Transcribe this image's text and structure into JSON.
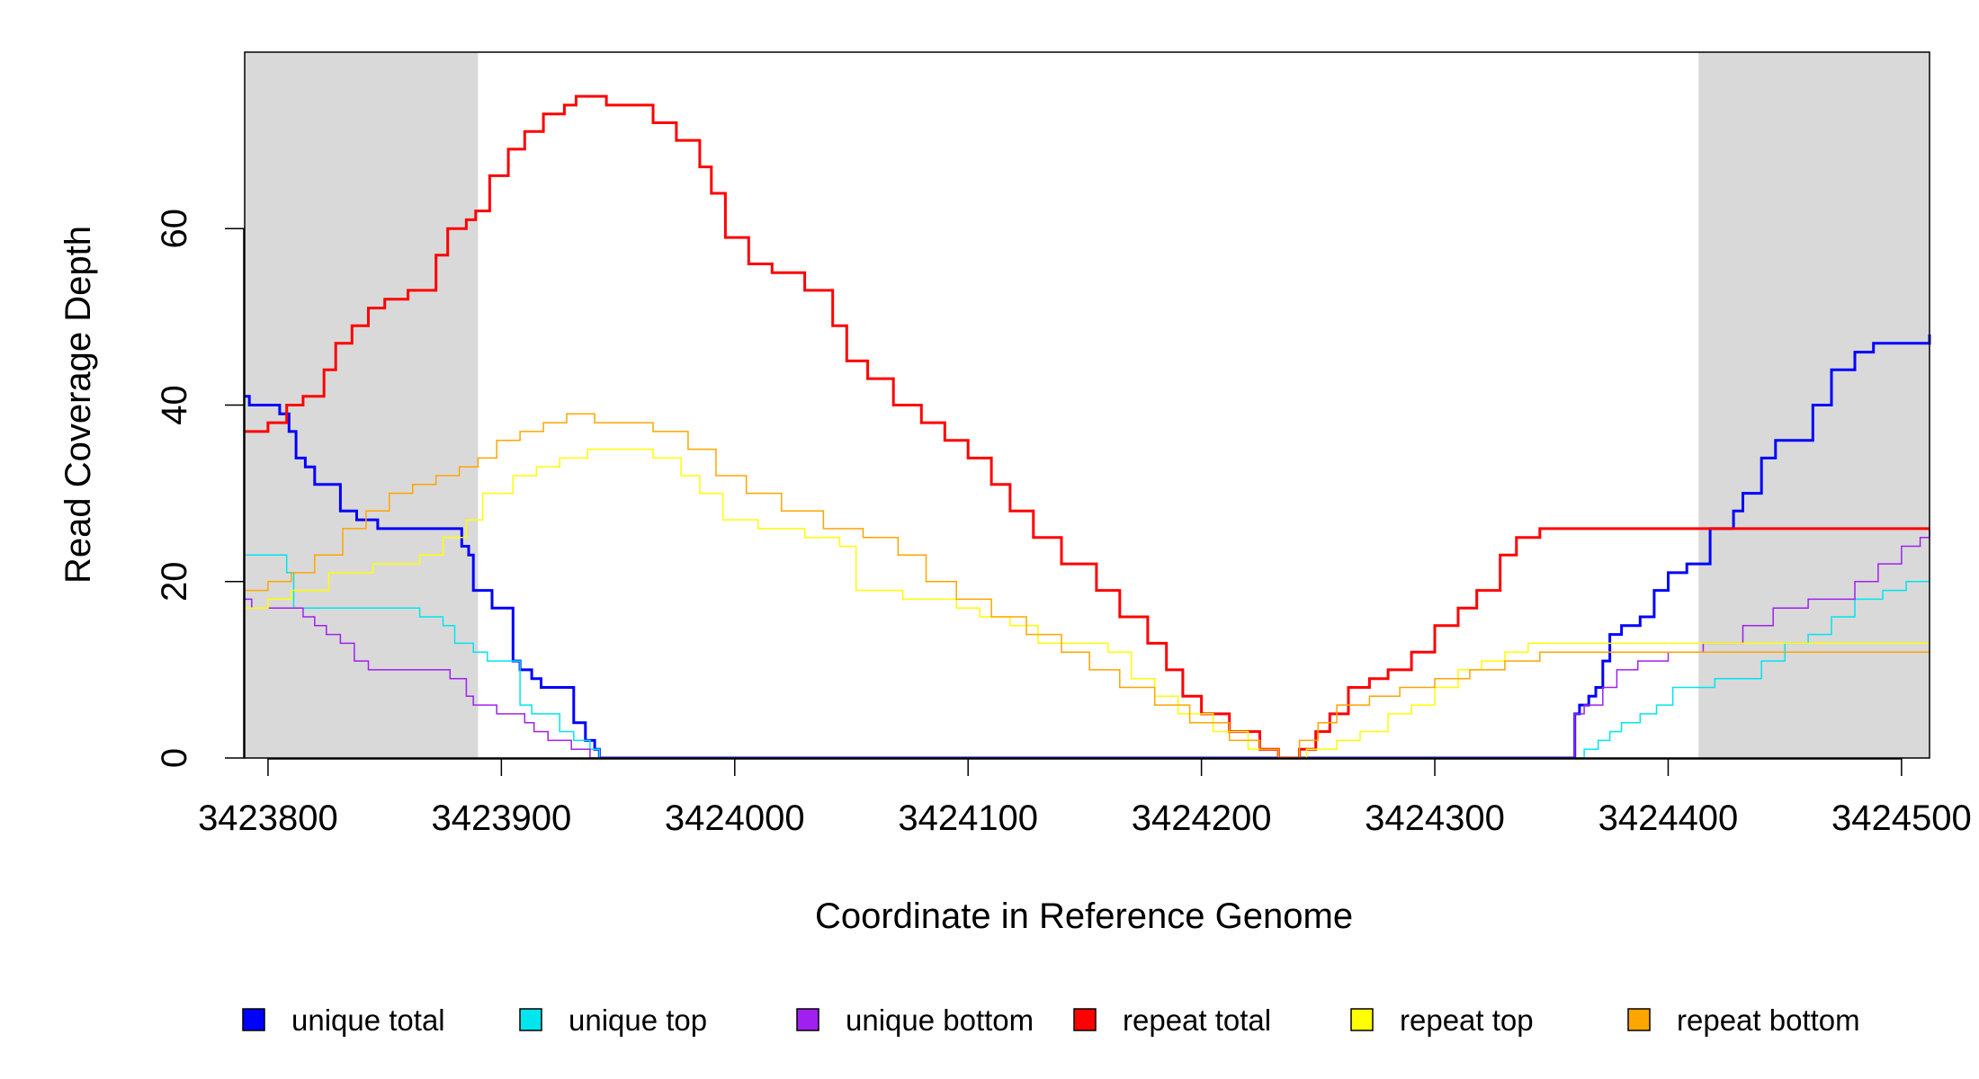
{
  "chart_data": {
    "type": "line",
    "xlabel": "Coordinate in Reference Genome",
    "ylabel": "Read Coverage Depth",
    "xlim": [
      3423790,
      3424512
    ],
    "ylim": [
      0,
      80
    ],
    "x_ticks": [
      3423800,
      3423900,
      3424000,
      3424100,
      3424200,
      3424300,
      3424400,
      3424500
    ],
    "x_tick_labels": [
      "3423800",
      "3423900",
      "3424000",
      "3424100",
      "3424200",
      "3424300",
      "3424400",
      "3424500"
    ],
    "y_ticks": [
      0,
      20,
      40,
      60
    ],
    "y_tick_labels": [
      "0",
      "20",
      "40",
      "60"
    ],
    "shaded_regions": [
      [
        3423790,
        3423890
      ],
      [
        3424413,
        3424512
      ]
    ],
    "shade_color": "#d9d9d9",
    "grid": false,
    "legend_position": "bottom",
    "series": [
      {
        "name": "unique total",
        "color": "#0000ff",
        "width": 3,
        "points": [
          [
            3423790,
            41
          ],
          [
            3423792,
            40
          ],
          [
            3423795,
            40
          ],
          [
            3423805,
            39
          ],
          [
            3423809,
            37
          ],
          [
            3423812,
            34
          ],
          [
            3423816,
            33
          ],
          [
            3423820,
            31
          ],
          [
            3423831,
            28
          ],
          [
            3423838,
            27
          ],
          [
            3423847,
            26
          ],
          [
            3423866,
            26
          ],
          [
            3423877,
            26
          ],
          [
            3423883,
            24
          ],
          [
            3423886,
            23
          ],
          [
            3423888,
            19
          ],
          [
            3423896,
            17
          ],
          [
            3423905,
            11
          ],
          [
            3423908,
            10
          ],
          [
            3423913,
            9
          ],
          [
            3423917,
            8
          ],
          [
            3423922,
            8
          ],
          [
            3423931,
            4
          ],
          [
            3423936,
            2
          ],
          [
            3423940,
            1
          ],
          [
            3423942,
            0
          ],
          [
            3424358,
            0
          ],
          [
            3424360,
            5
          ],
          [
            3424362,
            6
          ],
          [
            3424366,
            7
          ],
          [
            3424369,
            8
          ],
          [
            3424372,
            11
          ],
          [
            3424375,
            14
          ],
          [
            3424380,
            15
          ],
          [
            3424388,
            16
          ],
          [
            3424394,
            19
          ],
          [
            3424400,
            21
          ],
          [
            3424408,
            22
          ],
          [
            3424418,
            26
          ],
          [
            3424428,
            28
          ],
          [
            3424432,
            30
          ],
          [
            3424440,
            34
          ],
          [
            3424446,
            36
          ],
          [
            3424462,
            40
          ],
          [
            3424470,
            44
          ],
          [
            3424480,
            46
          ],
          [
            3424488,
            47
          ],
          [
            3424512,
            48
          ]
        ]
      },
      {
        "name": "unique top",
        "color": "#00e5ee",
        "width": 1.5,
        "points": [
          [
            3423790,
            23
          ],
          [
            3423805,
            23
          ],
          [
            3423808,
            21
          ],
          [
            3423811,
            17
          ],
          [
            3423865,
            16
          ],
          [
            3423875,
            15
          ],
          [
            3423880,
            13
          ],
          [
            3423888,
            12
          ],
          [
            3423894,
            11
          ],
          [
            3423908,
            6
          ],
          [
            3423913,
            5
          ],
          [
            3423925,
            3
          ],
          [
            3423931,
            2
          ],
          [
            3423938,
            1
          ],
          [
            3423942,
            0
          ],
          [
            3424361,
            0
          ],
          [
            3424364,
            1
          ],
          [
            3424370,
            2
          ],
          [
            3424375,
            3
          ],
          [
            3424380,
            4
          ],
          [
            3424388,
            5
          ],
          [
            3424395,
            6
          ],
          [
            3424402,
            8
          ],
          [
            3424420,
            9
          ],
          [
            3424440,
            11
          ],
          [
            3424450,
            13
          ],
          [
            3424460,
            14
          ],
          [
            3424470,
            16
          ],
          [
            3424480,
            18
          ],
          [
            3424492,
            19
          ],
          [
            3424502,
            20
          ],
          [
            3424512,
            20
          ]
        ]
      },
      {
        "name": "unique bottom",
        "color": "#a020f0",
        "width": 1.5,
        "points": [
          [
            3423790,
            18
          ],
          [
            3423793,
            17
          ],
          [
            3423808,
            17
          ],
          [
            3423815,
            16
          ],
          [
            3423820,
            15
          ],
          [
            3423825,
            14
          ],
          [
            3423831,
            13
          ],
          [
            3423837,
            11
          ],
          [
            3423843,
            10
          ],
          [
            3423862,
            10
          ],
          [
            3423878,
            9
          ],
          [
            3423885,
            7
          ],
          [
            3423888,
            6
          ],
          [
            3423898,
            5
          ],
          [
            3423910,
            4
          ],
          [
            3423914,
            3
          ],
          [
            3423920,
            2
          ],
          [
            3423930,
            1
          ],
          [
            3423938,
            0
          ],
          [
            3424358,
            0
          ],
          [
            3424360,
            5
          ],
          [
            3424364,
            6
          ],
          [
            3424372,
            8
          ],
          [
            3424378,
            10
          ],
          [
            3424387,
            11
          ],
          [
            3424400,
            12
          ],
          [
            3424415,
            13
          ],
          [
            3424432,
            15
          ],
          [
            3424445,
            17
          ],
          [
            3424460,
            18
          ],
          [
            3424480,
            20
          ],
          [
            3424490,
            22
          ],
          [
            3424500,
            24
          ],
          [
            3424508,
            25
          ],
          [
            3424512,
            26
          ]
        ]
      },
      {
        "name": "repeat total",
        "color": "#ff0000",
        "width": 3,
        "points": [
          [
            3423790,
            37
          ],
          [
            3423800,
            38
          ],
          [
            3423808,
            40
          ],
          [
            3423815,
            41
          ],
          [
            3423824,
            44
          ],
          [
            3423829,
            47
          ],
          [
            3423836,
            49
          ],
          [
            3423843,
            51
          ],
          [
            3423850,
            52
          ],
          [
            3423860,
            53
          ],
          [
            3423872,
            57
          ],
          [
            3423877,
            60
          ],
          [
            3423885,
            61
          ],
          [
            3423889,
            62
          ],
          [
            3423895,
            66
          ],
          [
            3423903,
            69
          ],
          [
            3423910,
            71
          ],
          [
            3423918,
            73
          ],
          [
            3423927,
            74
          ],
          [
            3423932,
            75
          ],
          [
            3423945,
            74
          ],
          [
            3423957,
            74
          ],
          [
            3423965,
            72
          ],
          [
            3423975,
            70
          ],
          [
            3423985,
            67
          ],
          [
            3423990,
            64
          ],
          [
            3423996,
            59
          ],
          [
            3424006,
            56
          ],
          [
            3424016,
            55
          ],
          [
            3424030,
            53
          ],
          [
            3424042,
            49
          ],
          [
            3424048,
            45
          ],
          [
            3424057,
            43
          ],
          [
            3424068,
            40
          ],
          [
            3424080,
            38
          ],
          [
            3424090,
            36
          ],
          [
            3424100,
            34
          ],
          [
            3424110,
            31
          ],
          [
            3424118,
            28
          ],
          [
            3424128,
            25
          ],
          [
            3424140,
            22
          ],
          [
            3424155,
            19
          ],
          [
            3424165,
            16
          ],
          [
            3424177,
            13
          ],
          [
            3424185,
            10
          ],
          [
            3424192,
            7
          ],
          [
            3424200,
            5
          ],
          [
            3424212,
            3
          ],
          [
            3424225,
            1
          ],
          [
            3424233,
            0
          ],
          [
            3424242,
            1
          ],
          [
            3424249,
            3
          ],
          [
            3424255,
            5
          ],
          [
            3424263,
            8
          ],
          [
            3424272,
            9
          ],
          [
            3424280,
            10
          ],
          [
            3424290,
            12
          ],
          [
            3424300,
            15
          ],
          [
            3424310,
            17
          ],
          [
            3424318,
            19
          ],
          [
            3424328,
            23
          ],
          [
            3424335,
            25
          ],
          [
            3424345,
            26
          ],
          [
            3424400,
            26
          ],
          [
            3424512,
            26
          ]
        ]
      },
      {
        "name": "repeat top",
        "color": "#ffff00",
        "width": 1.5,
        "points": [
          [
            3423790,
            17
          ],
          [
            3423800,
            18
          ],
          [
            3423810,
            19
          ],
          [
            3423826,
            21
          ],
          [
            3423845,
            22
          ],
          [
            3423865,
            23
          ],
          [
            3423875,
            25
          ],
          [
            3423885,
            27
          ],
          [
            3423892,
            30
          ],
          [
            3423905,
            32
          ],
          [
            3423915,
            33
          ],
          [
            3423925,
            34
          ],
          [
            3423937,
            35
          ],
          [
            3423955,
            35
          ],
          [
            3423965,
            34
          ],
          [
            3423977,
            32
          ],
          [
            3423985,
            30
          ],
          [
            3423995,
            27
          ],
          [
            3424010,
            26
          ],
          [
            3424030,
            25
          ],
          [
            3424045,
            24
          ],
          [
            3424052,
            19
          ],
          [
            3424072,
            18
          ],
          [
            3424095,
            17
          ],
          [
            3424105,
            16
          ],
          [
            3424118,
            15
          ],
          [
            3424130,
            13
          ],
          [
            3424150,
            13
          ],
          [
            3424160,
            12
          ],
          [
            3424170,
            9
          ],
          [
            3424180,
            7
          ],
          [
            3424190,
            5
          ],
          [
            3424205,
            3
          ],
          [
            3424220,
            1
          ],
          [
            3424233,
            0
          ],
          [
            3424245,
            1
          ],
          [
            3424258,
            2
          ],
          [
            3424268,
            3
          ],
          [
            3424280,
            5
          ],
          [
            3424290,
            6
          ],
          [
            3424300,
            8
          ],
          [
            3424310,
            10
          ],
          [
            3424320,
            11
          ],
          [
            3424330,
            12
          ],
          [
            3424340,
            13
          ],
          [
            3424360,
            13
          ],
          [
            3424400,
            13
          ],
          [
            3424512,
            13
          ]
        ]
      },
      {
        "name": "repeat bottom",
        "color": "#ffa500",
        "width": 1.5,
        "points": [
          [
            3423790,
            19
          ],
          [
            3423800,
            20
          ],
          [
            3423810,
            21
          ],
          [
            3423820,
            23
          ],
          [
            3423832,
            26
          ],
          [
            3423842,
            28
          ],
          [
            3423852,
            30
          ],
          [
            3423862,
            31
          ],
          [
            3423872,
            32
          ],
          [
            3423882,
            33
          ],
          [
            3423890,
            34
          ],
          [
            3423898,
            36
          ],
          [
            3423908,
            37
          ],
          [
            3423918,
            38
          ],
          [
            3423928,
            39
          ],
          [
            3423940,
            38
          ],
          [
            3423965,
            37
          ],
          [
            3423980,
            35
          ],
          [
            3423992,
            32
          ],
          [
            3424005,
            30
          ],
          [
            3424020,
            28
          ],
          [
            3424038,
            26
          ],
          [
            3424055,
            25
          ],
          [
            3424070,
            23
          ],
          [
            3424082,
            20
          ],
          [
            3424095,
            18
          ],
          [
            3424110,
            16
          ],
          [
            3424125,
            14
          ],
          [
            3424140,
            12
          ],
          [
            3424152,
            10
          ],
          [
            3424165,
            8
          ],
          [
            3424180,
            6
          ],
          [
            3424195,
            4
          ],
          [
            3424212,
            2
          ],
          [
            3424225,
            1
          ],
          [
            3424233,
            0
          ],
          [
            3424242,
            2
          ],
          [
            3424250,
            4
          ],
          [
            3424258,
            6
          ],
          [
            3424272,
            7
          ],
          [
            3424285,
            8
          ],
          [
            3424300,
            9
          ],
          [
            3424315,
            10
          ],
          [
            3424330,
            11
          ],
          [
            3424345,
            12
          ],
          [
            3424380,
            12
          ],
          [
            3424450,
            12
          ],
          [
            3424512,
            12
          ]
        ]
      }
    ]
  }
}
